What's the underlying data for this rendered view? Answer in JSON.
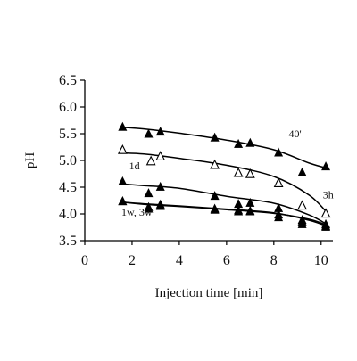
{
  "chart_data": {
    "type": "scatter",
    "title": "",
    "xlabel": "Injection time [min]",
    "ylabel": "pH",
    "xlim": [
      0,
      10.5
    ],
    "ylim": [
      3.5,
      6.5
    ],
    "xticks": [
      0,
      2,
      4,
      6,
      8,
      10
    ],
    "yticks": [
      3.5,
      4.0,
      4.5,
      5.0,
      5.5,
      6.0,
      6.5
    ],
    "xtick_labels": [
      "0",
      "2",
      "4",
      "6",
      "8",
      "10"
    ],
    "ytick_labels": [
      "3.5",
      "4.0",
      "4.5",
      "5.0",
      "5.5",
      "6.0",
      "6.5"
    ],
    "grid": false,
    "legend": "none",
    "series": [
      {
        "name": "40'",
        "marker": "filled-triangle",
        "x": [
          1.6,
          2.7,
          3.2,
          5.5,
          6.5,
          7.0,
          8.2,
          9.2,
          10.2
        ],
        "y": [
          5.62,
          5.49,
          5.53,
          5.42,
          5.3,
          5.32,
          5.14,
          4.77,
          4.88
        ],
        "fit": [
          5.62,
          5.59,
          5.51,
          5.38,
          5.2,
          4.95,
          4.85
        ]
      },
      {
        "name": "3h",
        "marker": "open-triangle",
        "x": [
          1.6,
          2.8,
          3.2,
          5.5,
          6.5,
          7.0,
          8.2,
          9.2,
          10.2
        ],
        "y": [
          5.19,
          4.98,
          5.07,
          4.91,
          4.76,
          4.74,
          4.57,
          4.15,
          4.0
        ],
        "fit": [
          5.14,
          5.12,
          5.04,
          4.91,
          4.7,
          4.35,
          4.0
        ]
      },
      {
        "name": "1d",
        "marker": "filled-triangle",
        "x": [
          1.6,
          2.7,
          3.2,
          5.5,
          6.5,
          7.0,
          8.2,
          9.2,
          10.2
        ],
        "y": [
          4.6,
          4.38,
          4.5,
          4.33,
          4.18,
          4.2,
          4.1,
          3.88,
          3.8
        ],
        "fit": [
          4.56,
          4.53,
          4.48,
          4.33,
          4.2,
          3.98,
          3.79
        ]
      },
      {
        "name": "1w, 3w",
        "marker": "filled-triangle",
        "x": [
          1.6,
          2.7,
          3.2,
          5.5,
          6.5,
          7.0,
          8.2,
          9.2,
          10.2
        ],
        "y": [
          4.23,
          4.09,
          4.17,
          4.07,
          4.04,
          4.04,
          3.98,
          3.8,
          3.75
        ],
        "fit": [
          4.22,
          4.19,
          4.15,
          4.09,
          4.02,
          3.88,
          3.76
        ]
      },
      {
        "name": "1w, 3w",
        "marker": "filled-triangle",
        "x": [
          1.6,
          2.7,
          3.2,
          5.5,
          6.5,
          7.0,
          8.2,
          9.2,
          10.2
        ],
        "y": [
          4.23,
          4.12,
          4.14,
          4.09,
          4.06,
          4.05,
          3.93,
          3.85,
          3.77
        ],
        "fit": [
          4.22,
          4.18,
          4.14,
          4.08,
          4.01,
          3.9,
          3.78
        ]
      }
    ],
    "fit_x": [
      1.6,
      2.5,
      4,
      6,
      8,
      9.5,
      10.3
    ],
    "annotations": [
      {
        "text": "40'",
        "x": 8.9,
        "y": 5.5
      },
      {
        "text": "3h",
        "x": 10.3,
        "y": 4.36
      },
      {
        "text": "1d",
        "x": 2.1,
        "y": 4.9
      },
      {
        "text": "1w, 3w",
        "x": 2.2,
        "y": 4.03
      }
    ]
  }
}
